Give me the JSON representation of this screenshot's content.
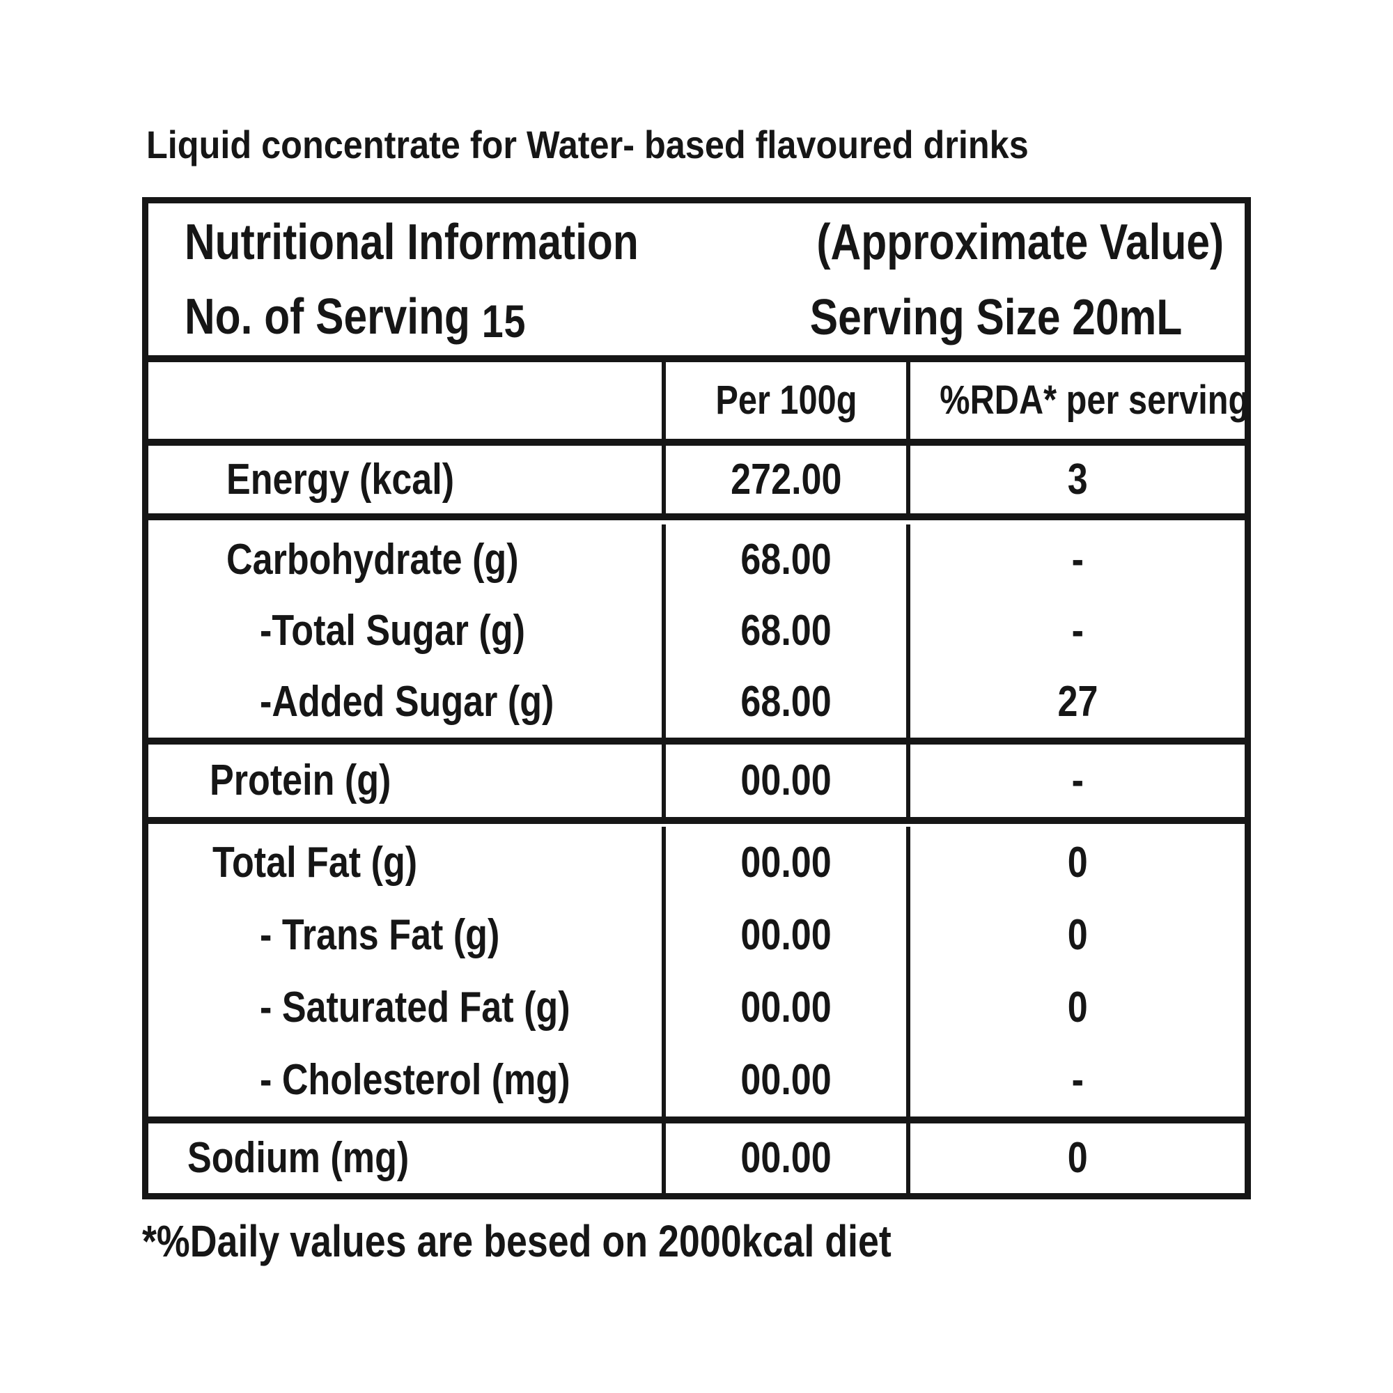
{
  "title": "Liquid concentrate for Water- based flavoured drinks",
  "table": {
    "header": {
      "line1_left": "Nutritional Information",
      "line1_right": "(Approximate Value)",
      "line2_left_label": "No. of Serving",
      "line2_left_value": "15",
      "line2_right": "Serving Size 20mL"
    },
    "columns": [
      "",
      "Per 100g",
      "%RDA* per serving"
    ],
    "groups": [
      {
        "rows": [
          {
            "label": "Energy (kcal)",
            "level": 0,
            "per100g": "272.00",
            "rda": "3"
          }
        ]
      },
      {
        "rows": [
          {
            "label": "Carbohydrate (g)",
            "level": 0,
            "per100g": "68.00",
            "rda": "-"
          },
          {
            "label": "-Total Sugar (g)",
            "level": 1,
            "per100g": "68.00",
            "rda": "-"
          },
          {
            "label": "-Added Sugar (g)",
            "level": 1,
            "per100g": "68.00",
            "rda": "27"
          }
        ]
      },
      {
        "rows": [
          {
            "label": "Protein (g)",
            "level": 0,
            "per100g": "00.00",
            "rda": "-"
          }
        ]
      },
      {
        "rows": [
          {
            "label": "Total Fat (g)",
            "level": 0,
            "per100g": "00.00",
            "rda": "0"
          },
          {
            "label": "- Trans Fat (g)",
            "level": 1,
            "per100g": "00.00",
            "rda": "0"
          },
          {
            "label": "- Saturated Fat (g)",
            "level": 1,
            "per100g": "00.00",
            "rda": "0"
          },
          {
            "label": "- Cholesterol (mg)",
            "level": 1,
            "per100g": "00.00",
            "rda": "-"
          }
        ]
      },
      {
        "rows": [
          {
            "label": "Sodium (mg)",
            "level": 0,
            "per100g": "00.00",
            "rda": "0"
          }
        ]
      }
    ]
  },
  "footnote": "*%Daily values are besed on 2000kcal diet",
  "colors": {
    "ink": "#161616",
    "background": "#ffffff"
  }
}
